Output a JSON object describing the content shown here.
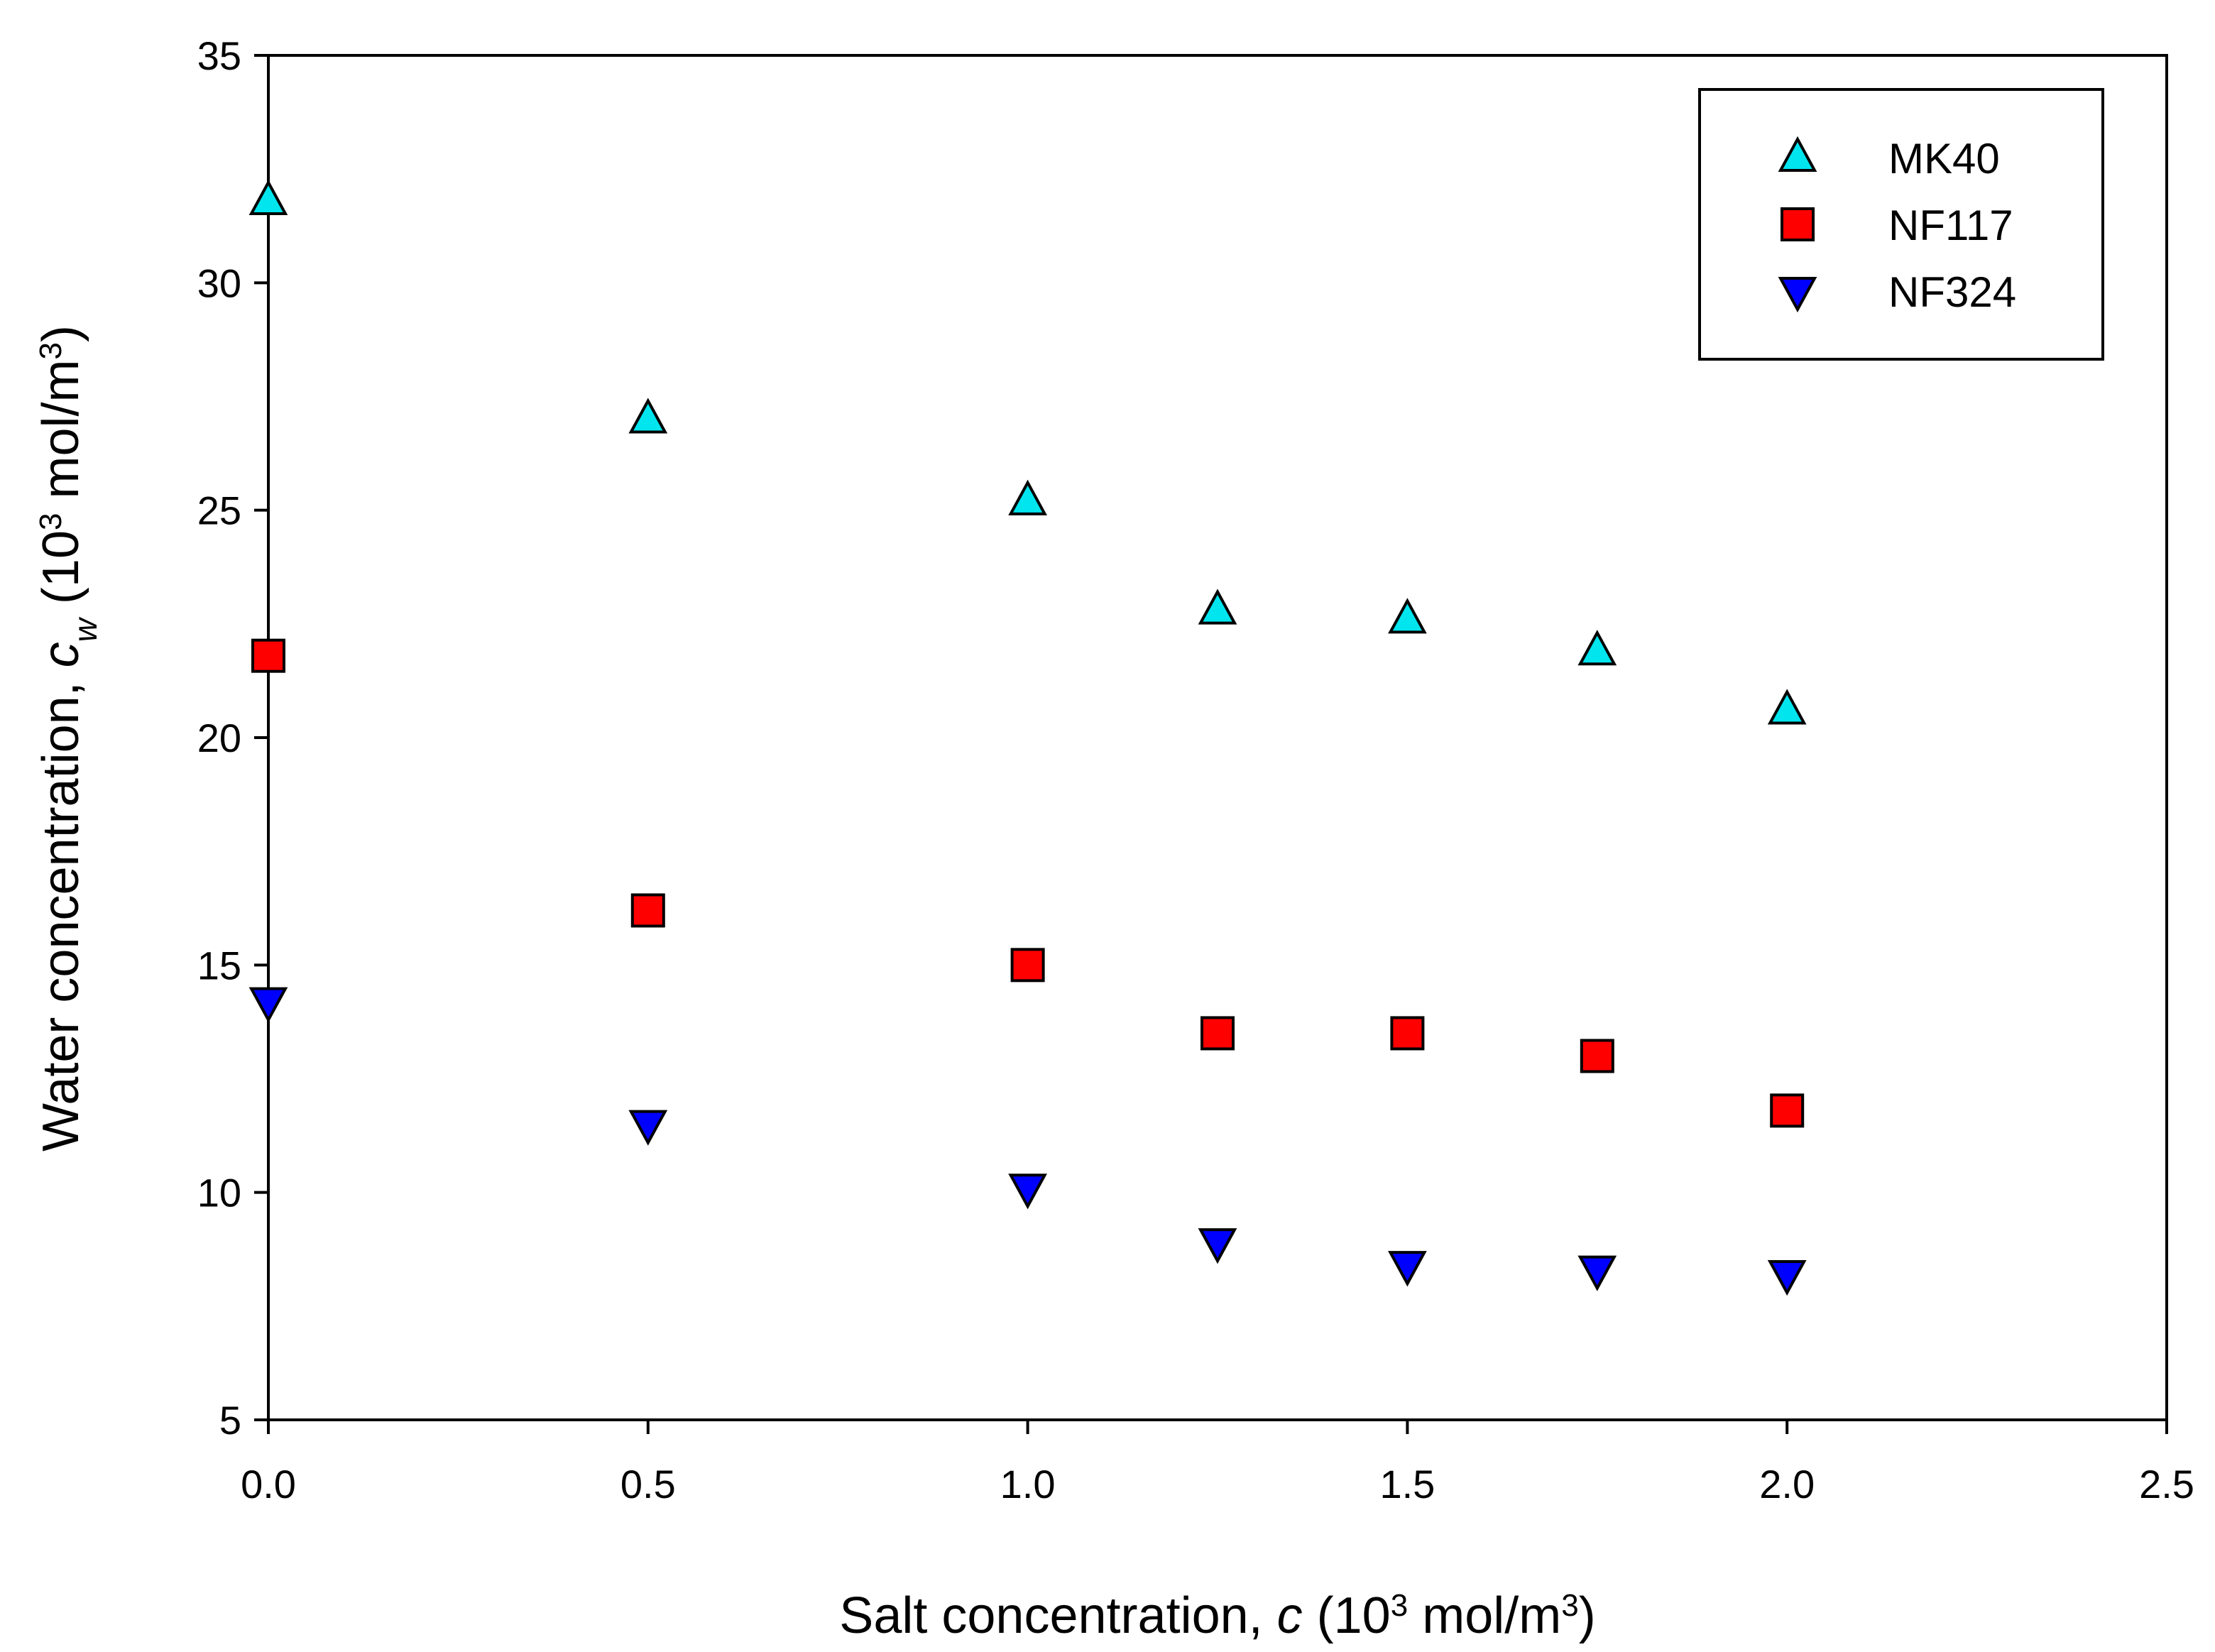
{
  "chart_data": {
    "type": "scatter",
    "xlabel": {
      "prefix": "Salt concentration, ",
      "var": "c",
      "unit_open": " (10",
      "unit_exp": "3",
      "unit_mid": " mol/m",
      "unit_exp2": "3",
      "unit_close": ")"
    },
    "ylabel": {
      "prefix": "Water concentration, ",
      "var": "c",
      "var_sub": "w",
      "unit_open": " (10",
      "unit_exp": "3",
      "unit_mid": " mol/m",
      "unit_exp2": "3",
      "unit_close": ")"
    },
    "xlim": [
      0,
      2.5
    ],
    "ylim": [
      5,
      35
    ],
    "xticks": [
      "0.0",
      "0.5",
      "1.0",
      "1.5",
      "2.0",
      "2.5"
    ],
    "yticks": [
      "5",
      "10",
      "15",
      "20",
      "25",
      "30",
      "35"
    ],
    "grid": false,
    "legend_position": "top-right",
    "x": [
      0,
      0.5,
      1.0,
      1.25,
      1.5,
      1.75,
      2.0
    ],
    "series": [
      {
        "name": "MK40",
        "marker": "triangle-up",
        "color": "#00e5ee",
        "values": [
          31.8,
          27.0,
          25.2,
          22.8,
          22.6,
          21.9,
          20.6
        ]
      },
      {
        "name": "NF117",
        "marker": "square",
        "color": "#ff0000",
        "values": [
          21.8,
          16.2,
          15.0,
          13.5,
          13.5,
          13.0,
          11.8
        ]
      },
      {
        "name": "NF324",
        "marker": "triangle-down",
        "color": "#0000ff",
        "values": [
          14.2,
          11.5,
          10.1,
          8.9,
          8.4,
          8.3,
          8.2
        ]
      }
    ]
  }
}
